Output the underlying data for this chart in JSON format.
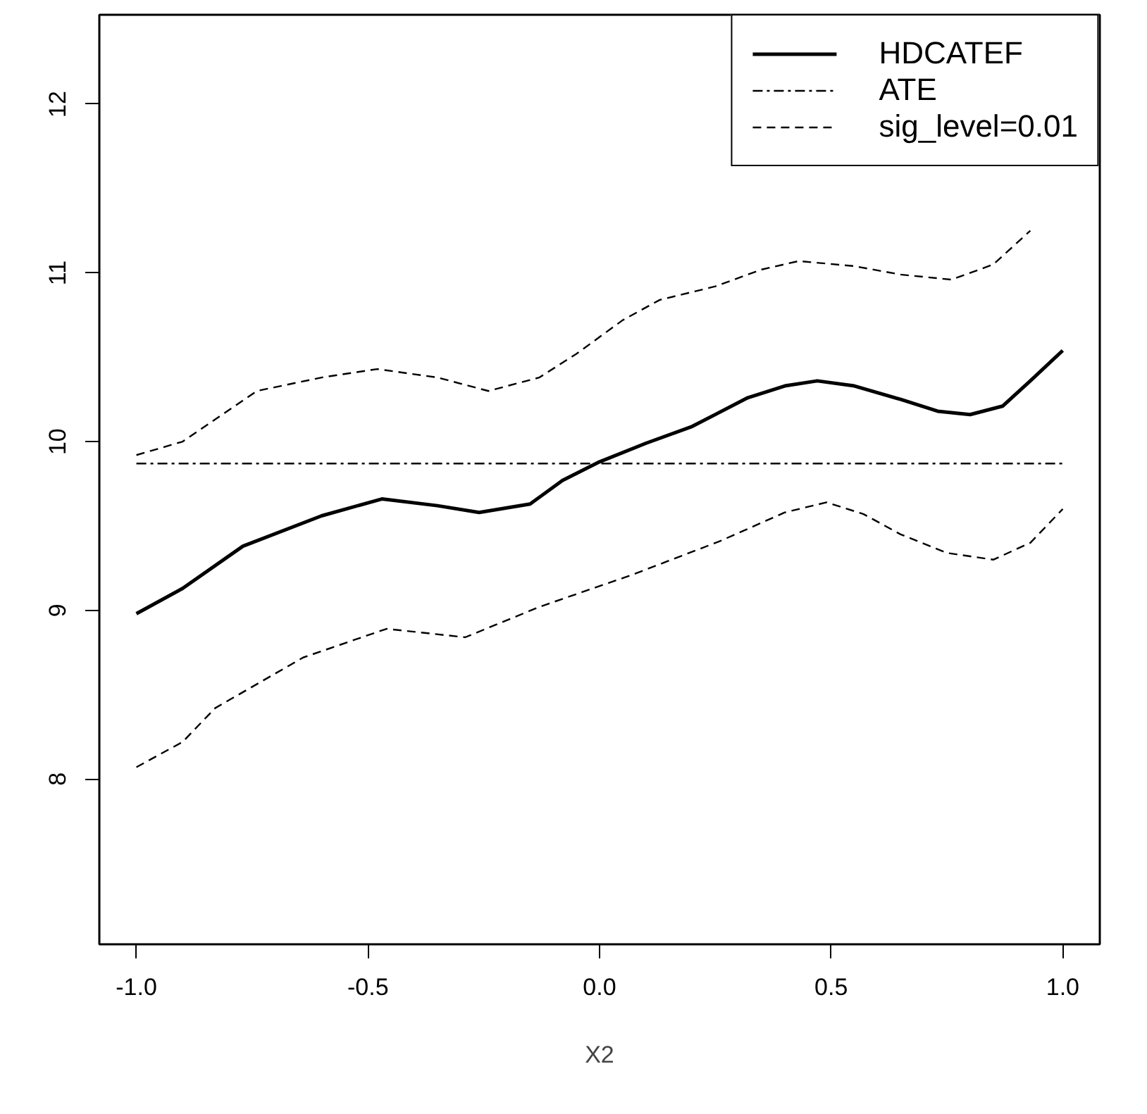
{
  "chart_data": {
    "type": "line",
    "xlabel": "X2",
    "xlim": [
      -1.08,
      1.08
    ],
    "ylim": [
      7.02,
      12.53
    ],
    "xticks": [
      {
        "value": -1,
        "label": "-1.0"
      },
      {
        "value": -0.5,
        "label": "-0.5"
      },
      {
        "value": 0,
        "label": "0.0"
      },
      {
        "value": 0.5,
        "label": "0.5"
      },
      {
        "value": 1,
        "label": "1.0"
      }
    ],
    "yticks": [
      8,
      9,
      10,
      11,
      12
    ],
    "grid": false,
    "legend": "top right",
    "series": [
      {
        "name": "HDCATEF",
        "color": "#000000",
        "line_style": "solid",
        "x": [
          -1,
          -0.9,
          -0.77,
          -0.6,
          -0.47,
          -0.35,
          -0.26,
          -0.15,
          -0.08,
          0,
          0.1,
          0.2,
          0.32,
          0.4,
          0.47,
          0.55,
          0.65,
          0.73,
          0.8,
          0.87,
          0.93,
          1.0
        ],
        "values": [
          8.98,
          9.13,
          9.38,
          9.56,
          9.66,
          9.62,
          9.58,
          9.63,
          9.77,
          9.88,
          9.99,
          10.09,
          10.26,
          10.33,
          10.36,
          10.33,
          10.25,
          10.18,
          10.16,
          10.21,
          10.36,
          10.54
        ]
      },
      {
        "name": "ATE",
        "color": "#000000",
        "line_style": "dashdot",
        "x": [
          -1,
          1
        ],
        "values": [
          9.87,
          9.87
        ]
      },
      {
        "name": "sig_level=0.01",
        "color": "#000000",
        "line_style": "dashed",
        "x": [
          -1,
          -0.9,
          -0.74,
          -0.6,
          -0.48,
          -0.35,
          -0.24,
          -0.13,
          -0.05,
          0.05,
          0.13,
          0.25,
          0.35,
          0.43,
          0.55,
          0.65,
          0.76,
          0.85,
          0.93
        ],
        "values": [
          9.92,
          10.0,
          10.3,
          10.38,
          10.43,
          10.38,
          10.3,
          10.38,
          10.52,
          10.72,
          10.84,
          10.92,
          11.02,
          11.07,
          11.04,
          10.99,
          10.96,
          11.05,
          11.25
        ]
      },
      {
        "color": "#000000",
        "line_style": "dashed",
        "x": [
          -1,
          -0.9,
          -0.83,
          -0.64,
          -0.46,
          -0.29,
          -0.13,
          0.07,
          0.26,
          0.4,
          0.49,
          0.57,
          0.65,
          0.75,
          0.85,
          0.93,
          1.0
        ],
        "values": [
          8.07,
          8.22,
          8.42,
          8.72,
          8.89,
          8.84,
          9.02,
          9.21,
          9.41,
          9.58,
          9.64,
          9.57,
          9.45,
          9.34,
          9.3,
          9.4,
          9.6
        ]
      }
    ]
  }
}
